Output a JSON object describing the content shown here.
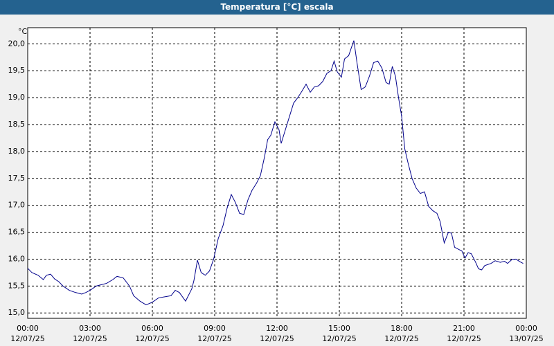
{
  "chart_data": {
    "type": "line",
    "title": "Temperatura [°C] escala",
    "y_label": "°C",
    "grid": true,
    "xlim": [
      0,
      24
    ],
    "xticks": [
      {
        "value": 0,
        "label": "00:00",
        "date": "12/07/25"
      },
      {
        "value": 3,
        "label": "03:00",
        "date": "12/07/25"
      },
      {
        "value": 6,
        "label": "06:00",
        "date": "12/07/25"
      },
      {
        "value": 9,
        "label": "09:00",
        "date": "12/07/25"
      },
      {
        "value": 12,
        "label": "12:00",
        "date": "12/07/25"
      },
      {
        "value": 15,
        "label": "15:00",
        "date": "12/07/25"
      },
      {
        "value": 18,
        "label": "18:00",
        "date": "12/07/25"
      },
      {
        "value": 21,
        "label": "21:00",
        "date": "12/07/25"
      },
      {
        "value": 24,
        "label": "00:00",
        "date": "13/07/25"
      }
    ],
    "ylim": [
      14.9,
      20.3
    ],
    "yticks": [
      {
        "value": 15,
        "label": "15,0"
      },
      {
        "value": 15.5,
        "label": "15,5"
      },
      {
        "value": 16,
        "label": "16,0"
      },
      {
        "value": 16.5,
        "label": "16,5"
      },
      {
        "value": 17,
        "label": "17,0"
      },
      {
        "value": 17.5,
        "label": "17,5"
      },
      {
        "value": 18,
        "label": "18,0"
      },
      {
        "value": 18.5,
        "label": "18,5"
      },
      {
        "value": 19,
        "label": "19,0"
      },
      {
        "value": 19.5,
        "label": "19,5"
      },
      {
        "value": 20,
        "label": "20,0"
      }
    ],
    "x": [
      0,
      0.2,
      0.5,
      0.75,
      0.9,
      1.1,
      1.3,
      1.5,
      1.7,
      2.0,
      2.3,
      2.6,
      2.8,
      3.0,
      3.3,
      3.5,
      3.8,
      4.1,
      4.3,
      4.6,
      4.9,
      5.1,
      5.4,
      5.7,
      6.0,
      6.3,
      6.6,
      6.9,
      7.1,
      7.3,
      7.6,
      7.9,
      8.0,
      8.17,
      8.35,
      8.55,
      8.75,
      8.95,
      9.17,
      9.4,
      9.6,
      9.8,
      10.0,
      10.2,
      10.4,
      10.6,
      10.8,
      11.0,
      11.2,
      11.4,
      11.55,
      11.7,
      11.9,
      12.1,
      12.2,
      12.4,
      12.6,
      12.8,
      13.0,
      13.2,
      13.4,
      13.6,
      13.8,
      14.0,
      14.2,
      14.4,
      14.6,
      14.75,
      14.9,
      15.1,
      15.25,
      15.45,
      15.6,
      15.7,
      15.85,
      16.05,
      16.25,
      16.45,
      16.65,
      16.85,
      17.05,
      17.25,
      17.4,
      17.55,
      17.7,
      17.85,
      18.0,
      18.15,
      18.3,
      18.5,
      18.7,
      18.9,
      19.1,
      19.3,
      19.5,
      19.7,
      19.85,
      20.05,
      20.25,
      20.4,
      20.55,
      20.75,
      20.9,
      21.05,
      21.2,
      21.35,
      21.55,
      21.7,
      21.85,
      22.0,
      22.3,
      22.5,
      22.75,
      22.95,
      23.1,
      23.3,
      23.5,
      23.7,
      23.85
    ],
    "series": [
      {
        "name": "Temperatura",
        "color": "#00008b",
        "values": [
          15.83,
          15.75,
          15.7,
          15.62,
          15.7,
          15.72,
          15.63,
          15.58,
          15.5,
          15.42,
          15.38,
          15.35,
          15.38,
          15.42,
          15.5,
          15.52,
          15.55,
          15.62,
          15.68,
          15.65,
          15.5,
          15.32,
          15.22,
          15.15,
          15.2,
          15.28,
          15.3,
          15.32,
          15.42,
          15.38,
          15.22,
          15.45,
          15.6,
          15.98,
          15.75,
          15.7,
          15.78,
          16.0,
          16.38,
          16.62,
          16.95,
          17.2,
          17.05,
          16.85,
          16.83,
          17.1,
          17.28,
          17.4,
          17.55,
          17.9,
          18.22,
          18.3,
          18.55,
          18.4,
          18.15,
          18.4,
          18.65,
          18.9,
          19.0,
          19.12,
          19.25,
          19.1,
          19.2,
          19.22,
          19.3,
          19.45,
          19.5,
          19.68,
          19.48,
          19.38,
          19.72,
          19.78,
          19.95,
          20.06,
          19.65,
          19.15,
          19.2,
          19.4,
          19.65,
          19.68,
          19.55,
          19.28,
          19.25,
          19.58,
          19.4,
          19.0,
          18.65,
          18.05,
          17.8,
          17.5,
          17.32,
          17.22,
          17.25,
          16.98,
          16.9,
          16.85,
          16.7,
          16.3,
          16.5,
          16.48,
          16.22,
          16.18,
          16.15,
          16.02,
          16.12,
          16.1,
          15.95,
          15.82,
          15.8,
          15.88,
          15.92,
          15.97,
          15.94,
          15.96,
          15.92,
          15.99,
          16.0,
          15.95,
          15.92
        ]
      }
    ]
  }
}
